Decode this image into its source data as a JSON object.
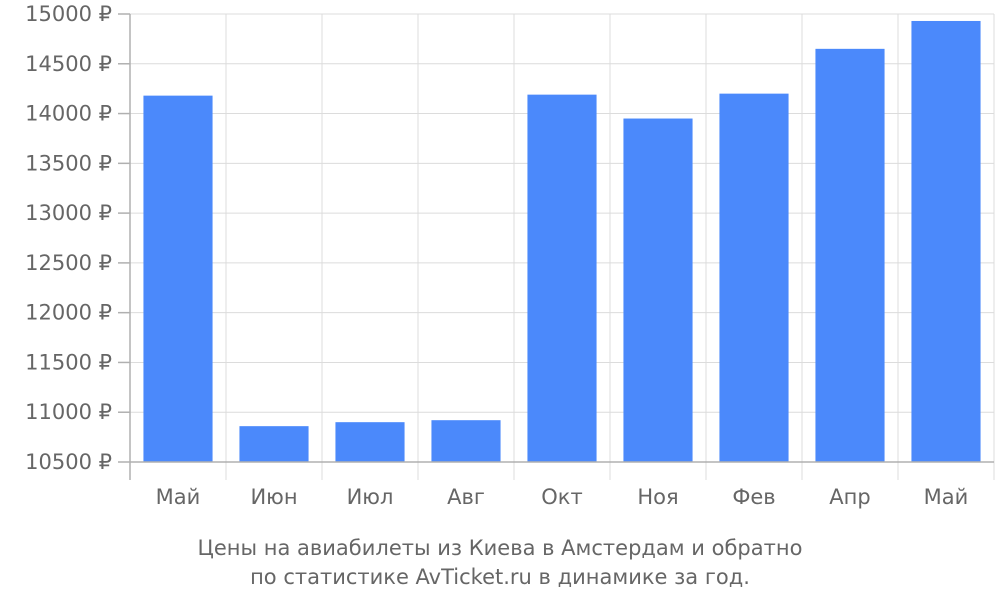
{
  "chart_data": {
    "type": "bar",
    "categories": [
      "Май",
      "Июн",
      "Июл",
      "Авг",
      "Окт",
      "Ноя",
      "Фев",
      "Апр",
      "Май"
    ],
    "values": [
      14180,
      10860,
      10900,
      10920,
      14190,
      13950,
      14200,
      14650,
      14930
    ],
    "ylim": [
      10500,
      15000
    ],
    "yticks": [
      10500,
      11000,
      11500,
      12000,
      12500,
      13000,
      13500,
      14000,
      14500,
      15000
    ],
    "ytick_labels": [
      "10500 ₽",
      "11000 ₽",
      "11500 ₽",
      "12000 ₽",
      "12500 ₽",
      "13000 ₽",
      "13500 ₽",
      "14000 ₽",
      "14500 ₽",
      "15000 ₽"
    ],
    "caption_line1": "Цены на авиабилеты из Киева в Амстердам и обратно",
    "caption_line2": "по статистике AvTicket.ru в динамике за год.",
    "bar_color": "#4b89fb",
    "grid": true
  }
}
